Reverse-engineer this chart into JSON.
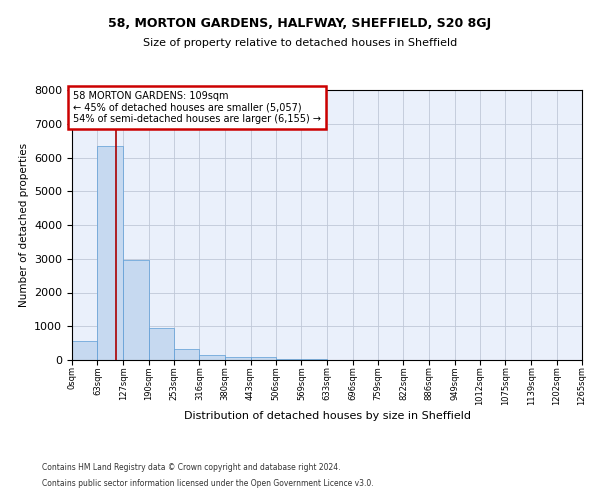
{
  "title": "58, MORTON GARDENS, HALFWAY, SHEFFIELD, S20 8GJ",
  "subtitle": "Size of property relative to detached houses in Sheffield",
  "xlabel": "Distribution of detached houses by size in Sheffield",
  "ylabel": "Number of detached properties",
  "bar_color": "#c6d9f0",
  "bar_edge_color": "#5b9bd5",
  "grid_color": "#c0c8d8",
  "background_color": "#eaf0fb",
  "property_size": 109,
  "annotation_text": "58 MORTON GARDENS: 109sqm\n← 45% of detached houses are smaller (5,057)\n54% of semi-detached houses are larger (6,155) →",
  "annotation_box_color": "#cc0000",
  "vline_color": "#aa0000",
  "bin_edges": [
    0,
    63,
    127,
    190,
    253,
    316,
    380,
    443,
    506,
    569,
    633,
    696,
    759,
    822,
    886,
    949,
    1012,
    1075,
    1139,
    1202,
    1265
  ],
  "bar_heights": [
    550,
    6350,
    2950,
    950,
    330,
    150,
    100,
    80,
    30,
    15,
    8,
    5,
    3,
    2,
    2,
    1,
    1,
    1,
    0,
    0
  ],
  "ylim": [
    0,
    8000
  ],
  "yticks": [
    0,
    1000,
    2000,
    3000,
    4000,
    5000,
    6000,
    7000,
    8000
  ],
  "footnote1": "Contains HM Land Registry data © Crown copyright and database right 2024.",
  "footnote2": "Contains public sector information licensed under the Open Government Licence v3.0."
}
